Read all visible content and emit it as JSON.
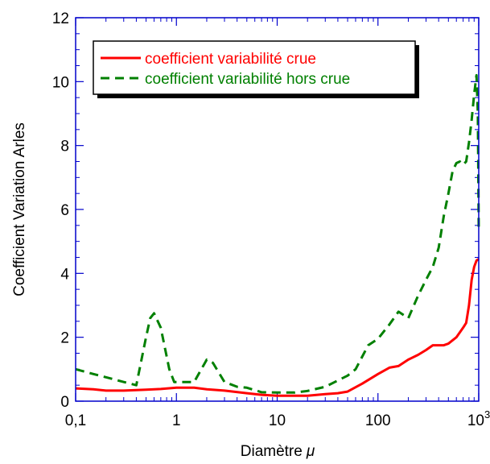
{
  "chart_data": {
    "type": "line",
    "title": "",
    "xlabel": "Diamètre",
    "xlabel_symbol": "μ",
    "ylabel": "Coefficient Variation Arles",
    "xscale": "log",
    "xlim": [
      0.1,
      1000
    ],
    "ylim": [
      0,
      12
    ],
    "x_ticks": [
      {
        "value": 0.1,
        "label": "0,1"
      },
      {
        "value": 1,
        "label": "1"
      },
      {
        "value": 10,
        "label": "10"
      },
      {
        "value": 100,
        "label": "100"
      },
      {
        "value": 1000,
        "label": "10",
        "sup": "3"
      }
    ],
    "y_ticks": [
      {
        "value": 0,
        "label": "0"
      },
      {
        "value": 2,
        "label": "2"
      },
      {
        "value": 4,
        "label": "4"
      },
      {
        "value": 6,
        "label": "6"
      },
      {
        "value": 8,
        "label": "8"
      },
      {
        "value": 10,
        "label": "10"
      },
      {
        "value": 12,
        "label": "12"
      }
    ],
    "grid": false,
    "legend_position": "top-left",
    "series": [
      {
        "name": "coefficient variabilité crue",
        "color": "#ff0000",
        "style": "solid",
        "points": [
          [
            0.1,
            0.4
          ],
          [
            0.15,
            0.37
          ],
          [
            0.2,
            0.33
          ],
          [
            0.3,
            0.33
          ],
          [
            0.5,
            0.36
          ],
          [
            0.7,
            0.38
          ],
          [
            1,
            0.42
          ],
          [
            1.5,
            0.42
          ],
          [
            2,
            0.37
          ],
          [
            3,
            0.33
          ],
          [
            5,
            0.25
          ],
          [
            7,
            0.2
          ],
          [
            10,
            0.17
          ],
          [
            15,
            0.17
          ],
          [
            20,
            0.17
          ],
          [
            30,
            0.22
          ],
          [
            40,
            0.25
          ],
          [
            50,
            0.3
          ],
          [
            70,
            0.55
          ],
          [
            100,
            0.85
          ],
          [
            130,
            1.05
          ],
          [
            160,
            1.1
          ],
          [
            200,
            1.3
          ],
          [
            250,
            1.45
          ],
          [
            300,
            1.6
          ],
          [
            350,
            1.75
          ],
          [
            400,
            1.75
          ],
          [
            450,
            1.75
          ],
          [
            500,
            1.8
          ],
          [
            600,
            2.0
          ],
          [
            700,
            2.3
          ],
          [
            750,
            2.45
          ],
          [
            800,
            3.0
          ],
          [
            850,
            3.8
          ],
          [
            900,
            4.2
          ],
          [
            950,
            4.4
          ],
          [
            1000,
            4.45
          ]
        ]
      },
      {
        "name": "coefficient variabilité hors crue",
        "color": "#008000",
        "style": "dashed",
        "points": [
          [
            0.1,
            1.0
          ],
          [
            0.15,
            0.85
          ],
          [
            0.2,
            0.75
          ],
          [
            0.3,
            0.6
          ],
          [
            0.4,
            0.5
          ],
          [
            0.5,
            2.0
          ],
          [
            0.55,
            2.6
          ],
          [
            0.6,
            2.75
          ],
          [
            0.7,
            2.3
          ],
          [
            0.85,
            1.0
          ],
          [
            0.95,
            0.6
          ],
          [
            1,
            0.6
          ],
          [
            1.5,
            0.6
          ],
          [
            2,
            1.3
          ],
          [
            2.3,
            1.2
          ],
          [
            3,
            0.6
          ],
          [
            4,
            0.45
          ],
          [
            5,
            0.42
          ],
          [
            7,
            0.28
          ],
          [
            10,
            0.27
          ],
          [
            15,
            0.27
          ],
          [
            20,
            0.32
          ],
          [
            30,
            0.45
          ],
          [
            50,
            0.8
          ],
          [
            60,
            1.0
          ],
          [
            80,
            1.75
          ],
          [
            100,
            1.95
          ],
          [
            130,
            2.4
          ],
          [
            160,
            2.8
          ],
          [
            200,
            2.6
          ],
          [
            250,
            3.3
          ],
          [
            300,
            3.8
          ],
          [
            350,
            4.2
          ],
          [
            400,
            4.8
          ],
          [
            450,
            5.8
          ],
          [
            500,
            6.5
          ],
          [
            550,
            7.2
          ],
          [
            600,
            7.45
          ],
          [
            650,
            7.5
          ],
          [
            700,
            7.4
          ],
          [
            750,
            7.5
          ],
          [
            800,
            8.1
          ],
          [
            850,
            8.8
          ],
          [
            900,
            9.6
          ],
          [
            950,
            10.2
          ],
          [
            980,
            9.0
          ],
          [
            1000,
            5.4
          ]
        ]
      }
    ]
  }
}
